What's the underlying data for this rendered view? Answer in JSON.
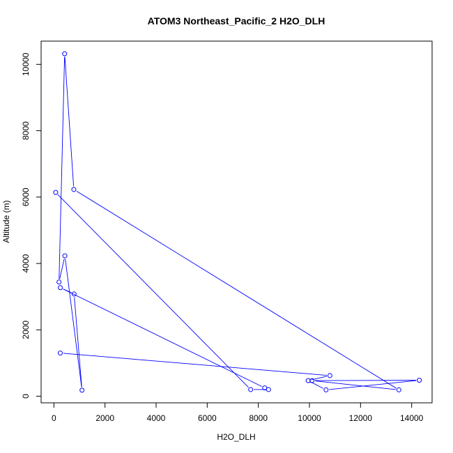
{
  "chart_data": {
    "type": "line",
    "title": "ATOM3 Northeast_Pacific_2 H2O_DLH",
    "xlabel": "H2O_DLH",
    "ylabel": "Altitude (m)",
    "xlim": [
      -500,
      14800
    ],
    "ylim": [
      -200,
      10700
    ],
    "xticks": [
      0,
      2000,
      4000,
      6000,
      8000,
      10000,
      12000,
      14000
    ],
    "yticks": [
      0,
      2000,
      4000,
      6000,
      8000,
      10000
    ],
    "grid": false,
    "legend": "none",
    "color": "#0000ff",
    "points": [
      {
        "x": 250,
        "y": 1300
      },
      {
        "x": 10800,
        "y": 620
      },
      {
        "x": 9950,
        "y": 470
      },
      {
        "x": 10650,
        "y": 190
      },
      {
        "x": 14300,
        "y": 480
      },
      {
        "x": 10100,
        "y": 470
      },
      {
        "x": 13500,
        "y": 190
      },
      {
        "x": 780,
        "y": 6230
      },
      {
        "x": 420,
        "y": 10320
      },
      {
        "x": 200,
        "y": 3440
      },
      {
        "x": 430,
        "y": 4230
      },
      {
        "x": 1100,
        "y": 180
      },
      {
        "x": 790,
        "y": 3080
      },
      {
        "x": 250,
        "y": 3270
      },
      {
        "x": 8250,
        "y": 250
      },
      {
        "x": 8400,
        "y": 200
      },
      {
        "x": 7700,
        "y": 200
      },
      {
        "x": 70,
        "y": 6140
      }
    ]
  }
}
